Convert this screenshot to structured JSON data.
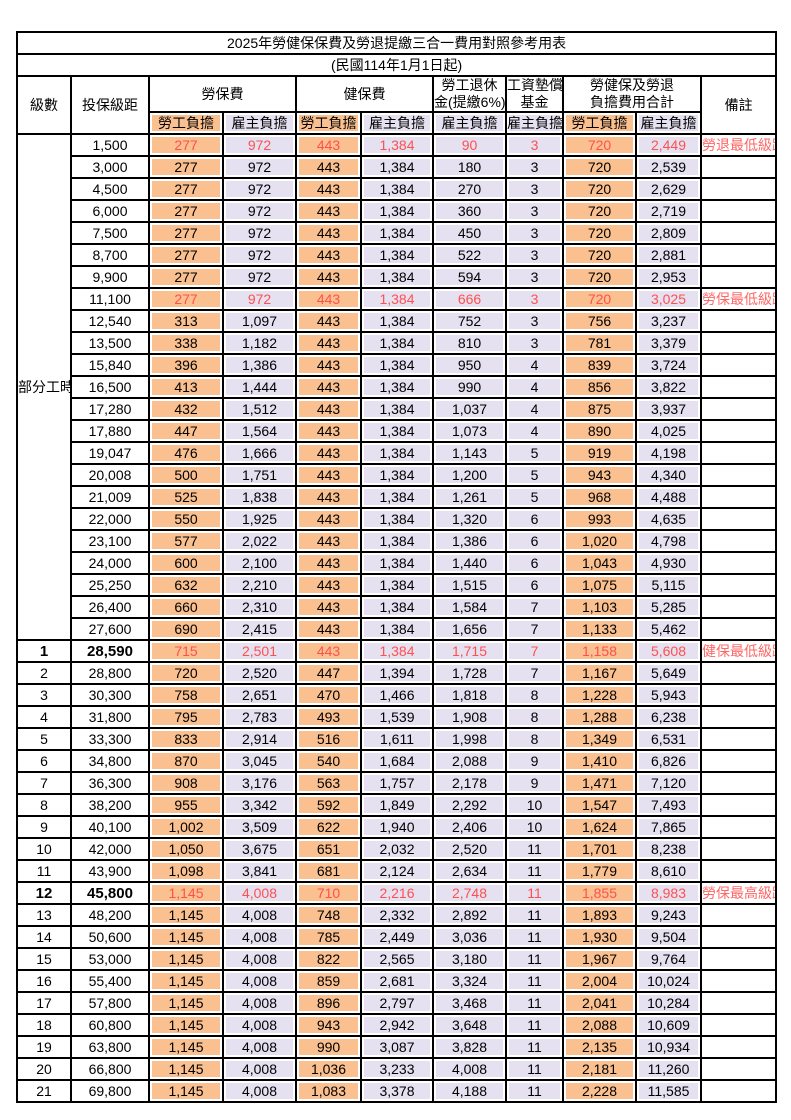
{
  "table": {
    "title": "2025年勞健保保費及勞退提繳三合一費用對照參考用表",
    "subtitle": "(民國114年1月1日起)",
    "columns": {
      "level": "級數",
      "bracket": "投保級距",
      "labor_insurance": "勞保費",
      "health_insurance": "健保費",
      "pension_line1": "勞工退休",
      "pension_line2": "金(提繳6%)",
      "wage_fund_line1": "工資墊償",
      "wage_fund_line2": "基金",
      "total_line1": "勞健保及勞退",
      "total_line2": "負擔費用合計",
      "remark": "備註",
      "employee_burden": "勞工負擔",
      "employer_burden": "雇主負擔"
    },
    "part_time_group_label": "部分工時",
    "part_time_row_count": 23,
    "colors": {
      "employee_cell_bg": "#FAC090",
      "employer_cell_bg": "#E5E1F0",
      "highlight_value_text": "#FF5050",
      "remark_text": "#FF6666",
      "grid": "#000000"
    },
    "rows": [
      {
        "level": "",
        "bracket": "1,500",
        "values": [
          "277",
          "972",
          "443",
          "1,384",
          "90",
          "3",
          "720",
          "2,449"
        ],
        "remark": "勞退最低級距",
        "highlight": true,
        "bold": false
      },
      {
        "level": "",
        "bracket": "3,000",
        "values": [
          "277",
          "972",
          "443",
          "1,384",
          "180",
          "3",
          "720",
          "2,539"
        ],
        "remark": "",
        "highlight": false,
        "bold": false
      },
      {
        "level": "",
        "bracket": "4,500",
        "values": [
          "277",
          "972",
          "443",
          "1,384",
          "270",
          "3",
          "720",
          "2,629"
        ],
        "remark": "",
        "highlight": false,
        "bold": false
      },
      {
        "level": "",
        "bracket": "6,000",
        "values": [
          "277",
          "972",
          "443",
          "1,384",
          "360",
          "3",
          "720",
          "2,719"
        ],
        "remark": "",
        "highlight": false,
        "bold": false
      },
      {
        "level": "",
        "bracket": "7,500",
        "values": [
          "277",
          "972",
          "443",
          "1,384",
          "450",
          "3",
          "720",
          "2,809"
        ],
        "remark": "",
        "highlight": false,
        "bold": false
      },
      {
        "level": "",
        "bracket": "8,700",
        "values": [
          "277",
          "972",
          "443",
          "1,384",
          "522",
          "3",
          "720",
          "2,881"
        ],
        "remark": "",
        "highlight": false,
        "bold": false
      },
      {
        "level": "",
        "bracket": "9,900",
        "values": [
          "277",
          "972",
          "443",
          "1,384",
          "594",
          "3",
          "720",
          "2,953"
        ],
        "remark": "",
        "highlight": false,
        "bold": false
      },
      {
        "level": "",
        "bracket": "11,100",
        "values": [
          "277",
          "972",
          "443",
          "1,384",
          "666",
          "3",
          "720",
          "3,025"
        ],
        "remark": "勞保最低級距",
        "highlight": true,
        "bold": false
      },
      {
        "level": "",
        "bracket": "12,540",
        "values": [
          "313",
          "1,097",
          "443",
          "1,384",
          "752",
          "3",
          "756",
          "3,237"
        ],
        "remark": "",
        "highlight": false,
        "bold": false
      },
      {
        "level": "",
        "bracket": "13,500",
        "values": [
          "338",
          "1,182",
          "443",
          "1,384",
          "810",
          "3",
          "781",
          "3,379"
        ],
        "remark": "",
        "highlight": false,
        "bold": false
      },
      {
        "level": "",
        "bracket": "15,840",
        "values": [
          "396",
          "1,386",
          "443",
          "1,384",
          "950",
          "4",
          "839",
          "3,724"
        ],
        "remark": "",
        "highlight": false,
        "bold": false
      },
      {
        "level": "",
        "bracket": "16,500",
        "values": [
          "413",
          "1,444",
          "443",
          "1,384",
          "990",
          "4",
          "856",
          "3,822"
        ],
        "remark": "",
        "highlight": false,
        "bold": false
      },
      {
        "level": "",
        "bracket": "17,280",
        "values": [
          "432",
          "1,512",
          "443",
          "1,384",
          "1,037",
          "4",
          "875",
          "3,937"
        ],
        "remark": "",
        "highlight": false,
        "bold": false
      },
      {
        "level": "",
        "bracket": "17,880",
        "values": [
          "447",
          "1,564",
          "443",
          "1,384",
          "1,073",
          "4",
          "890",
          "4,025"
        ],
        "remark": "",
        "highlight": false,
        "bold": false
      },
      {
        "level": "",
        "bracket": "19,047",
        "values": [
          "476",
          "1,666",
          "443",
          "1,384",
          "1,143",
          "5",
          "919",
          "4,198"
        ],
        "remark": "",
        "highlight": false,
        "bold": false
      },
      {
        "level": "",
        "bracket": "20,008",
        "values": [
          "500",
          "1,751",
          "443",
          "1,384",
          "1,200",
          "5",
          "943",
          "4,340"
        ],
        "remark": "",
        "highlight": false,
        "bold": false
      },
      {
        "level": "",
        "bracket": "21,009",
        "values": [
          "525",
          "1,838",
          "443",
          "1,384",
          "1,261",
          "5",
          "968",
          "4,488"
        ],
        "remark": "",
        "highlight": false,
        "bold": false
      },
      {
        "level": "",
        "bracket": "22,000",
        "values": [
          "550",
          "1,925",
          "443",
          "1,384",
          "1,320",
          "6",
          "993",
          "4,635"
        ],
        "remark": "",
        "highlight": false,
        "bold": false
      },
      {
        "level": "",
        "bracket": "23,100",
        "values": [
          "577",
          "2,022",
          "443",
          "1,384",
          "1,386",
          "6",
          "1,020",
          "4,798"
        ],
        "remark": "",
        "highlight": false,
        "bold": false
      },
      {
        "level": "",
        "bracket": "24,000",
        "values": [
          "600",
          "2,100",
          "443",
          "1,384",
          "1,440",
          "6",
          "1,043",
          "4,930"
        ],
        "remark": "",
        "highlight": false,
        "bold": false
      },
      {
        "level": "",
        "bracket": "25,250",
        "values": [
          "632",
          "2,210",
          "443",
          "1,384",
          "1,515",
          "6",
          "1,075",
          "5,115"
        ],
        "remark": "",
        "highlight": false,
        "bold": false
      },
      {
        "level": "",
        "bracket": "26,400",
        "values": [
          "660",
          "2,310",
          "443",
          "1,384",
          "1,584",
          "7",
          "1,103",
          "5,285"
        ],
        "remark": "",
        "highlight": false,
        "bold": false
      },
      {
        "level": "",
        "bracket": "27,600",
        "values": [
          "690",
          "2,415",
          "443",
          "1,384",
          "1,656",
          "7",
          "1,133",
          "5,462"
        ],
        "remark": "",
        "highlight": false,
        "bold": false
      },
      {
        "level": "1",
        "bracket": "28,590",
        "values": [
          "715",
          "2,501",
          "443",
          "1,384",
          "1,715",
          "7",
          "1,158",
          "5,608"
        ],
        "remark": "健保最低級距",
        "highlight": true,
        "bold": true
      },
      {
        "level": "2",
        "bracket": "28,800",
        "values": [
          "720",
          "2,520",
          "447",
          "1,394",
          "1,728",
          "7",
          "1,167",
          "5,649"
        ],
        "remark": "",
        "highlight": false,
        "bold": false
      },
      {
        "level": "3",
        "bracket": "30,300",
        "values": [
          "758",
          "2,651",
          "470",
          "1,466",
          "1,818",
          "8",
          "1,228",
          "5,943"
        ],
        "remark": "",
        "highlight": false,
        "bold": false
      },
      {
        "level": "4",
        "bracket": "31,800",
        "values": [
          "795",
          "2,783",
          "493",
          "1,539",
          "1,908",
          "8",
          "1,288",
          "6,238"
        ],
        "remark": "",
        "highlight": false,
        "bold": false
      },
      {
        "level": "5",
        "bracket": "33,300",
        "values": [
          "833",
          "2,914",
          "516",
          "1,611",
          "1,998",
          "8",
          "1,349",
          "6,531"
        ],
        "remark": "",
        "highlight": false,
        "bold": false
      },
      {
        "level": "6",
        "bracket": "34,800",
        "values": [
          "870",
          "3,045",
          "540",
          "1,684",
          "2,088",
          "9",
          "1,410",
          "6,826"
        ],
        "remark": "",
        "highlight": false,
        "bold": false
      },
      {
        "level": "7",
        "bracket": "36,300",
        "values": [
          "908",
          "3,176",
          "563",
          "1,757",
          "2,178",
          "9",
          "1,471",
          "7,120"
        ],
        "remark": "",
        "highlight": false,
        "bold": false
      },
      {
        "level": "8",
        "bracket": "38,200",
        "values": [
          "955",
          "3,342",
          "592",
          "1,849",
          "2,292",
          "10",
          "1,547",
          "7,493"
        ],
        "remark": "",
        "highlight": false,
        "bold": false
      },
      {
        "level": "9",
        "bracket": "40,100",
        "values": [
          "1,002",
          "3,509",
          "622",
          "1,940",
          "2,406",
          "10",
          "1,624",
          "7,865"
        ],
        "remark": "",
        "highlight": false,
        "bold": false
      },
      {
        "level": "10",
        "bracket": "42,000",
        "values": [
          "1,050",
          "3,675",
          "651",
          "2,032",
          "2,520",
          "11",
          "1,701",
          "8,238"
        ],
        "remark": "",
        "highlight": false,
        "bold": false
      },
      {
        "level": "11",
        "bracket": "43,900",
        "values": [
          "1,098",
          "3,841",
          "681",
          "2,124",
          "2,634",
          "11",
          "1,779",
          "8,610"
        ],
        "remark": "",
        "highlight": false,
        "bold": false
      },
      {
        "level": "12",
        "bracket": "45,800",
        "values": [
          "1,145",
          "4,008",
          "710",
          "2,216",
          "2,748",
          "11",
          "1,855",
          "8,983"
        ],
        "remark": "勞保最高級距",
        "highlight": true,
        "bold": true
      },
      {
        "level": "13",
        "bracket": "48,200",
        "values": [
          "1,145",
          "4,008",
          "748",
          "2,332",
          "2,892",
          "11",
          "1,893",
          "9,243"
        ],
        "remark": "",
        "highlight": false,
        "bold": false
      },
      {
        "level": "14",
        "bracket": "50,600",
        "values": [
          "1,145",
          "4,008",
          "785",
          "2,449",
          "3,036",
          "11",
          "1,930",
          "9,504"
        ],
        "remark": "",
        "highlight": false,
        "bold": false
      },
      {
        "level": "15",
        "bracket": "53,000",
        "values": [
          "1,145",
          "4,008",
          "822",
          "2,565",
          "3,180",
          "11",
          "1,967",
          "9,764"
        ],
        "remark": "",
        "highlight": false,
        "bold": false
      },
      {
        "level": "16",
        "bracket": "55,400",
        "values": [
          "1,145",
          "4,008",
          "859",
          "2,681",
          "3,324",
          "11",
          "2,004",
          "10,024"
        ],
        "remark": "",
        "highlight": false,
        "bold": false
      },
      {
        "level": "17",
        "bracket": "57,800",
        "values": [
          "1,145",
          "4,008",
          "896",
          "2,797",
          "3,468",
          "11",
          "2,041",
          "10,284"
        ],
        "remark": "",
        "highlight": false,
        "bold": false
      },
      {
        "level": "18",
        "bracket": "60,800",
        "values": [
          "1,145",
          "4,008",
          "943",
          "2,942",
          "3,648",
          "11",
          "2,088",
          "10,609"
        ],
        "remark": "",
        "highlight": false,
        "bold": false
      },
      {
        "level": "19",
        "bracket": "63,800",
        "values": [
          "1,145",
          "4,008",
          "990",
          "3,087",
          "3,828",
          "11",
          "2,135",
          "10,934"
        ],
        "remark": "",
        "highlight": false,
        "bold": false
      },
      {
        "level": "20",
        "bracket": "66,800",
        "values": [
          "1,145",
          "4,008",
          "1,036",
          "3,233",
          "4,008",
          "11",
          "2,181",
          "11,260"
        ],
        "remark": "",
        "highlight": false,
        "bold": false
      },
      {
        "level": "21",
        "bracket": "69,800",
        "values": [
          "1,145",
          "4,008",
          "1,083",
          "3,378",
          "4,188",
          "11",
          "2,228",
          "11,585"
        ],
        "remark": "",
        "highlight": false,
        "bold": false
      }
    ]
  }
}
